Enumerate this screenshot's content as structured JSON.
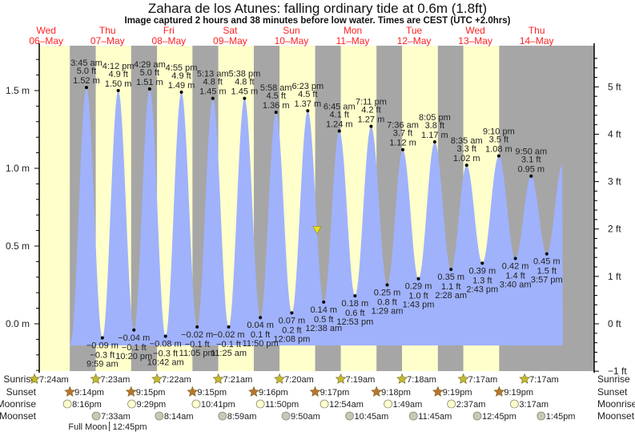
{
  "header": {
    "title": "Zahara de los Atunes: falling  ordinary tide at 0.6m (1.8ft)",
    "subtitle": "Image captured 2 hours and 38 minutes before low water. Times are CEST (UTC +2.0hrs)"
  },
  "colors": {
    "day": "#ffffcc",
    "night": "#a6a6a6",
    "tide": "#a0b2fc",
    "day_label": "#ff2222",
    "sunrise": "#c2bb2e",
    "sunset": "#b87530",
    "moonrise": "#ffffcc",
    "moonset": "#c8c8b4",
    "current_marker": "#e8e020"
  },
  "chart_data": {
    "type": "area",
    "title": "Zahara de los Atunes: falling  ordinary tide at 0.6m (1.8ft)",
    "days": [
      {
        "dow": "Wed",
        "date": "06–May"
      },
      {
        "dow": "Thu",
        "date": "07–May"
      },
      {
        "dow": "Fri",
        "date": "08–May"
      },
      {
        "dow": "Sat",
        "date": "09–May"
      },
      {
        "dow": "Sun",
        "date": "10–May"
      },
      {
        "dow": "Mon",
        "date": "11–May"
      },
      {
        "dow": "Tue",
        "date": "12–May"
      },
      {
        "dow": "Wed",
        "date": "13–May"
      },
      {
        "dow": "Thu",
        "date": "14–May"
      }
    ],
    "y_left": {
      "unit": "m",
      "ylim": [
        -0.305,
        1.75
      ],
      "labels": [
        "1.5 m",
        "1.0 m",
        "0.5 m",
        "0.0 m"
      ],
      "values": [
        1.5,
        1.0,
        0.5,
        0.0
      ]
    },
    "y_right": {
      "unit": "ft",
      "labels": [
        "5 ft",
        "4 ft",
        "3 ft",
        "2 ft",
        "1 ft",
        "0 ft",
        "−1 ft"
      ],
      "values": [
        5,
        4,
        3,
        2,
        1,
        0,
        -1
      ]
    },
    "extrema": [
      {
        "type": "high",
        "day": 1,
        "time": "3:45 am",
        "m": "1.52",
        "ft": "5.0"
      },
      {
        "type": "low",
        "day": 1,
        "time": "9:59 am",
        "m": "−0.09",
        "ft": "−0.3"
      },
      {
        "type": "high",
        "day": 1,
        "time": "4:12 pm",
        "m": "1.50",
        "ft": "4.9"
      },
      {
        "type": "low",
        "day": 1,
        "time": "10:20 pm",
        "m": "−0.04",
        "ft": "−0.1"
      },
      {
        "type": "high",
        "day": 2,
        "time": "4:29 am",
        "m": "1.51",
        "ft": "5.0"
      },
      {
        "type": "low",
        "day": 2,
        "time": "10:42 am",
        "m": "−0.08",
        "ft": "−0.3"
      },
      {
        "type": "high",
        "day": 2,
        "time": "4:55 pm",
        "m": "1.49",
        "ft": "4.9"
      },
      {
        "type": "low",
        "day": 2,
        "time": "11:05 pm",
        "m": "−0.02",
        "ft": "−0.1"
      },
      {
        "type": "high",
        "day": 3,
        "time": "5:13 am",
        "m": "1.45",
        "ft": "4.8"
      },
      {
        "type": "low",
        "day": 3,
        "time": "11:25 am",
        "m": "−0.02",
        "ft": "−0.1"
      },
      {
        "type": "high",
        "day": 3,
        "time": "5:38 pm",
        "m": "1.45",
        "ft": "4.8"
      },
      {
        "type": "low",
        "day": 3,
        "time": "11:50 pm",
        "m": "0.04",
        "ft": "0.1"
      },
      {
        "type": "high",
        "day": 4,
        "time": "5:58 am",
        "m": "1.36",
        "ft": "4.5"
      },
      {
        "type": "low",
        "day": 4,
        "time": "12:08 pm",
        "m": "0.07",
        "ft": "0.2"
      },
      {
        "type": "high",
        "day": 4,
        "time": "6:23 pm",
        "m": "1.37",
        "ft": "4.5"
      },
      {
        "type": "low",
        "day": 5,
        "time": "12:38 am",
        "m": "0.14",
        "ft": "0.5"
      },
      {
        "type": "high",
        "day": 5,
        "time": "6:45 am",
        "m": "1.24",
        "ft": "4.1"
      },
      {
        "type": "low",
        "day": 5,
        "time": "12:53 pm",
        "m": "0.18",
        "ft": "0.6"
      },
      {
        "type": "high",
        "day": 5,
        "time": "7:11 pm",
        "m": "1.27",
        "ft": "4.2"
      },
      {
        "type": "low",
        "day": 6,
        "time": "1:29 am",
        "m": "0.25",
        "ft": "0.8"
      },
      {
        "type": "high",
        "day": 6,
        "time": "7:36 am",
        "m": "1.12",
        "ft": "3.7"
      },
      {
        "type": "low",
        "day": 6,
        "time": "1:43 pm",
        "m": "0.29",
        "ft": "1.0"
      },
      {
        "type": "high",
        "day": 6,
        "time": "8:05 pm",
        "m": "1.17",
        "ft": "3.8"
      },
      {
        "type": "low",
        "day": 7,
        "time": "2:28 am",
        "m": "0.35",
        "ft": "1.1"
      },
      {
        "type": "high",
        "day": 7,
        "time": "8:35 am",
        "m": "1.02",
        "ft": "3.3"
      },
      {
        "type": "low",
        "day": 7,
        "time": "2:43 pm",
        "m": "0.39",
        "ft": "1.3"
      },
      {
        "type": "high",
        "day": 7,
        "time": "9:10 pm",
        "m": "1.08",
        "ft": "3.5"
      },
      {
        "type": "low",
        "day": 8,
        "time": "3:40 am",
        "m": "0.42",
        "ft": "1.4"
      },
      {
        "type": "high",
        "day": 8,
        "time": "9:50 am",
        "m": "0.95",
        "ft": "3.1"
      },
      {
        "type": "low",
        "day": 8,
        "time": "3:57 pm",
        "m": "0.45",
        "ft": "1.5"
      }
    ],
    "curve_endpoints": [
      {
        "day": 0,
        "time": "9:33 pm",
        "m": -0.12
      },
      {
        "day": 8,
        "time": "10:15 pm",
        "m": 1.03
      }
    ],
    "current": {
      "day": 4,
      "time": "10:00 pm",
      "m": 0.6
    }
  },
  "almanac": {
    "row_labels": {
      "sunrise": "Sunrise",
      "sunset": "Sunset",
      "moonrise": "Moonrise",
      "moonset": "Moonset"
    },
    "sunrise": [
      {
        "day": 0,
        "time": "7:24am"
      },
      {
        "day": 1,
        "time": "7:23am"
      },
      {
        "day": 2,
        "time": "7:22am"
      },
      {
        "day": 3,
        "time": "7:21am"
      },
      {
        "day": 4,
        "time": "7:20am"
      },
      {
        "day": 5,
        "time": "7:19am"
      },
      {
        "day": 6,
        "time": "7:18am"
      },
      {
        "day": 7,
        "time": "7:17am"
      },
      {
        "day": 8,
        "time": "7:17am"
      }
    ],
    "sunset": [
      {
        "day": 0,
        "time": "9:14pm"
      },
      {
        "day": 1,
        "time": "9:15pm"
      },
      {
        "day": 2,
        "time": "9:15pm"
      },
      {
        "day": 3,
        "time": "9:16pm"
      },
      {
        "day": 4,
        "time": "9:17pm"
      },
      {
        "day": 5,
        "time": "9:18pm"
      },
      {
        "day": 6,
        "time": "9:19pm"
      },
      {
        "day": 7,
        "time": "9:19pm"
      }
    ],
    "moonrise": [
      {
        "day": 0,
        "time": "8:16pm"
      },
      {
        "day": 1,
        "time": "9:29pm"
      },
      {
        "day": 2,
        "time": "10:41pm"
      },
      {
        "day": 3,
        "time": "11:50pm"
      },
      {
        "day": 5,
        "time": "12:54am"
      },
      {
        "day": 6,
        "time": "1:49am"
      },
      {
        "day": 7,
        "time": "2:37am"
      },
      {
        "day": 8,
        "time": "3:17am"
      }
    ],
    "moonset": [
      {
        "day": 1,
        "time": "7:33am"
      },
      {
        "day": 2,
        "time": "8:14am"
      },
      {
        "day": 3,
        "time": "8:59am"
      },
      {
        "day": 4,
        "time": "9:50am"
      },
      {
        "day": 5,
        "time": "10:45am"
      },
      {
        "day": 6,
        "time": "11:45am"
      },
      {
        "day": 7,
        "time": "12:45pm"
      },
      {
        "day": 8,
        "time": "1:45pm"
      }
    ],
    "moon_phase": {
      "label": "Full Moon",
      "day": 1,
      "time": "12:45pm"
    }
  }
}
